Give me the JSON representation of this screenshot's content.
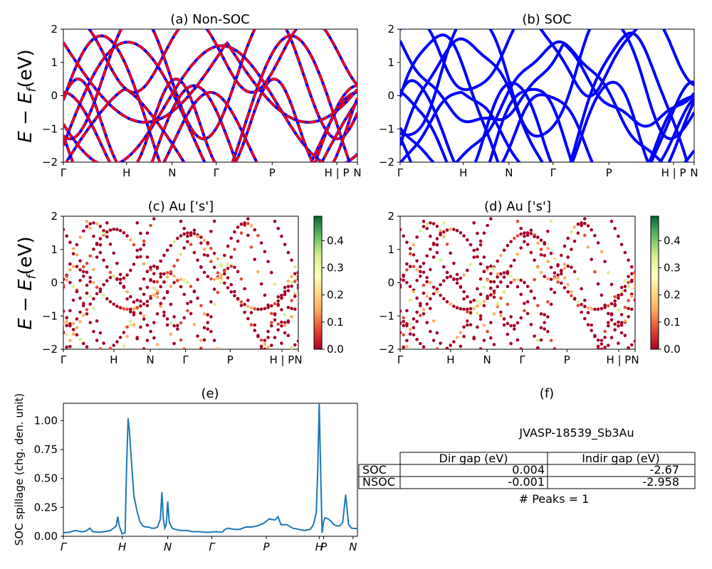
{
  "figure": {
    "panel_a_title": "(a) Non-SOC",
    "panel_b_title": "(b) SOC",
    "panel_c_title": "(c)  Au ['s']",
    "panel_d_title": "(d) Au ['s']",
    "panel_e_title": "(e)",
    "panel_f_title": "(f)",
    "band_ylabel_main": "E − E",
    "band_ylabel_sub": "f",
    "band_ylabel_unit": "(eV)",
    "spillage_ylabel": "SOC spillage (chg. den. unit)"
  },
  "chart_data": [
    {
      "id": "a",
      "type": "line",
      "title": "(a) Non-SOC",
      "ylim": [
        -2,
        2
      ],
      "yticks": [
        "−2",
        "−1",
        "0",
        "1",
        "2"
      ],
      "xticks": [
        "Γ",
        "H",
        "N",
        "Γ",
        "P",
        "H | P",
        "N"
      ],
      "colors": {
        "soc": "#0000ff",
        "nonsoc": "#ff0000"
      }
    },
    {
      "id": "b",
      "type": "line",
      "title": "(b) SOC",
      "ylim": [
        -2,
        2
      ],
      "yticks": [
        "−2",
        "−1",
        "0",
        "1",
        "2"
      ],
      "xticks": [
        "Γ",
        "H",
        "N",
        "Γ",
        "P",
        "H | P",
        "N"
      ],
      "colors": {
        "soc": "#0000ff"
      }
    },
    {
      "id": "c",
      "type": "scatter",
      "title": "(c)  Au ['s']",
      "ylim": [
        -2,
        2
      ],
      "yticks": [
        "−2",
        "−1",
        "0",
        "1",
        "2"
      ],
      "xticks": [
        "Γ",
        "H",
        "N",
        "Γ",
        "P",
        "H | P",
        "N"
      ],
      "colorbar_ticks": [
        "0.0",
        "0.1",
        "0.2",
        "0.3",
        "0.4"
      ],
      "colorbar_range": [
        0,
        0.49
      ]
    },
    {
      "id": "d",
      "type": "scatter",
      "title": "(d) Au ['s']",
      "ylim": [
        -2,
        2
      ],
      "yticks": [
        "−2",
        "−1",
        "0",
        "1",
        "2"
      ],
      "xticks": [
        "Γ",
        "H",
        "N",
        "Γ",
        "P",
        "H | P",
        "N"
      ],
      "colorbar_ticks": [
        "0.0",
        "0.1",
        "0.2",
        "0.3",
        "0.4"
      ],
      "colorbar_range": [
        0,
        0.49
      ]
    },
    {
      "id": "e",
      "type": "line",
      "title": "(e)",
      "ylabel": "SOC spillage (chg. den. unit)",
      "ylim": [
        0,
        1.15
      ],
      "yticks": [
        "0.00",
        "0.25",
        "0.50",
        "0.75",
        "1.00"
      ],
      "xticks": [
        "Γ",
        "H",
        "N",
        "Γ",
        "P",
        "H",
        "P",
        "N"
      ],
      "series": [
        {
          "x": [
            0,
            0.02,
            0.04,
            0.06,
            0.07,
            0.08,
            0.09,
            0.1,
            0.12,
            0.14,
            0.16,
            0.18,
            0.185,
            0.19,
            0.2,
            0.21,
            0.215,
            0.22,
            0.225,
            0.23,
            0.24,
            0.25,
            0.26,
            0.27,
            0.28,
            0.29,
            0.3,
            0.31,
            0.32,
            0.33,
            0.335,
            0.34,
            0.345,
            0.35,
            0.355,
            0.36,
            0.37,
            0.38,
            0.4,
            0.42,
            0.44,
            0.46,
            0.48,
            0.5,
            0.52,
            0.54,
            0.55,
            0.56,
            0.58,
            0.6,
            0.62,
            0.64,
            0.66,
            0.68,
            0.7,
            0.7,
            0.72,
            0.73,
            0.74,
            0.75,
            0.76,
            0.78,
            0.8,
            0.82,
            0.84,
            0.85,
            0.86,
            0.865,
            0.87,
            0.875,
            0.88,
            0.885,
            0.89,
            0.9,
            0.91,
            0.92,
            0.93,
            0.94,
            0.95,
            0.96,
            0.97,
            0.98,
            1.0
          ],
          "y": [
            0.03,
            0.035,
            0.05,
            0.04,
            0.04,
            0.05,
            0.07,
            0.04,
            0.035,
            0.04,
            0.05,
            0.09,
            0.17,
            0.09,
            0.02,
            0.03,
            0.6,
            1.02,
            0.9,
            0.7,
            0.35,
            0.22,
            0.13,
            0.09,
            0.08,
            0.08,
            0.07,
            0.07,
            0.08,
            0.15,
            0.38,
            0.15,
            0.07,
            0.1,
            0.3,
            0.12,
            0.07,
            0.06,
            0.05,
            0.05,
            0.04,
            0.04,
            0.035,
            0.035,
            0.04,
            0.035,
            0.06,
            0.07,
            0.06,
            0.06,
            0.08,
            0.08,
            0.09,
            0.11,
            0.15,
            0.15,
            0.14,
            0.17,
            0.1,
            0.1,
            0.1,
            0.07,
            0.06,
            0.05,
            0.06,
            0.1,
            0.2,
            0.55,
            1.15,
            0.55,
            0.03,
            0.13,
            0.16,
            0.15,
            0.13,
            0.1,
            0.09,
            0.09,
            0.12,
            0.36,
            0.1,
            0.07,
            0.065
          ]
        }
      ]
    }
  ],
  "table": {
    "jid": "JVASP-18539_Sb3Au",
    "headers": [
      "Dir gap (eV)",
      "Indir gap (eV)"
    ],
    "rows": [
      {
        "label": "SOC",
        "dir": "0.004",
        "indir": "-2.67"
      },
      {
        "label": "NSOC",
        "dir": "-0.001",
        "indir": "-2.958"
      }
    ],
    "peaks": "# Peaks = 1"
  }
}
